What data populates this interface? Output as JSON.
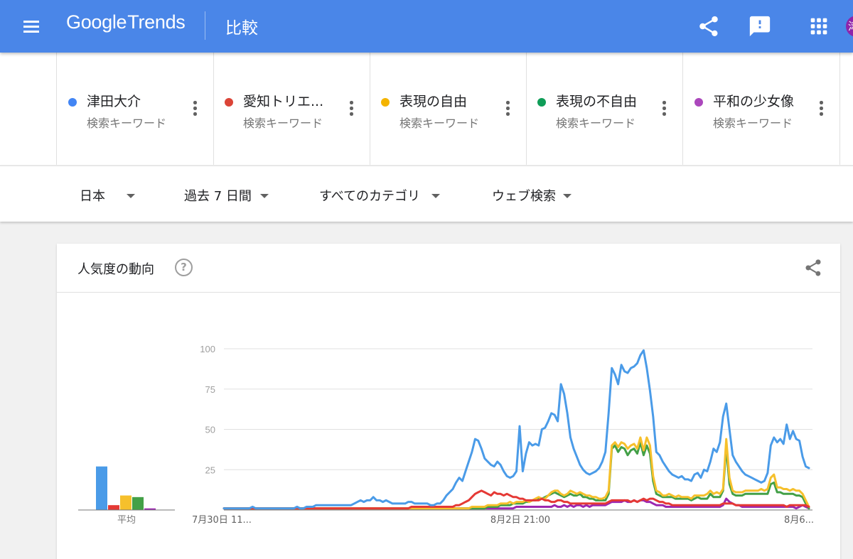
{
  "header": {
    "logo_brand": "Google",
    "logo_product": "Trends",
    "page_title": "比較",
    "avatar_initial": "津",
    "icons": [
      "menu-icon",
      "share-icon",
      "feedback-icon",
      "apps-icon"
    ]
  },
  "terms": [
    {
      "name": "津田大介",
      "type": "検索キーワード",
      "color": "#4285f4"
    },
    {
      "name": "愛知トリエ...",
      "type": "検索キーワード",
      "color": "#db4437"
    },
    {
      "name": "表現の自由",
      "type": "検索キーワード",
      "color": "#f4b400"
    },
    {
      "name": "表現の不自由",
      "type": "検索キーワード",
      "color": "#0f9d58"
    },
    {
      "name": "平和の少女像",
      "type": "検索キーワード",
      "color": "#ab47bc"
    }
  ],
  "filters": {
    "region": "日本",
    "period": "過去 7 日間",
    "category": "すべてのカテゴリ",
    "search_type": "ウェブ検索"
  },
  "card": {
    "title": "人気度の動向",
    "help_glyph": "?"
  },
  "chart_data": {
    "type": "line",
    "ylim": [
      0,
      100
    ],
    "y_ticks": [
      "100",
      "75",
      "50",
      "25"
    ],
    "x_tick_labels": [
      "7月30日 11...",
      "8月2日 21:00",
      "8月6..."
    ],
    "average_label": "平均",
    "averages": [
      27,
      3,
      9,
      8,
      1
    ],
    "series": [
      {
        "name": "津田大介",
        "color": "#4a9be8",
        "values": [
          1,
          1,
          1,
          1,
          1,
          1,
          1,
          1,
          1,
          2,
          1,
          1,
          1,
          1,
          1,
          1,
          1,
          1,
          1,
          1,
          1,
          1,
          1,
          2,
          1,
          1,
          2,
          2,
          2,
          3,
          3,
          3,
          3,
          3,
          3,
          3,
          3,
          3,
          3,
          3,
          3,
          4,
          5,
          6,
          5,
          6,
          6,
          8,
          6,
          6,
          5,
          6,
          5,
          4,
          4,
          4,
          4,
          4,
          5,
          5,
          4,
          4,
          4,
          4,
          4,
          3,
          3,
          4,
          4,
          6,
          9,
          11,
          13,
          17,
          20,
          18,
          24,
          30,
          36,
          44,
          43,
          38,
          32,
          30,
          28,
          27,
          30,
          28,
          24,
          21,
          20,
          21,
          24,
          52,
          24,
          35,
          42,
          40,
          41,
          40,
          50,
          51,
          55,
          60,
          59,
          55,
          78,
          72,
          60,
          45,
          38,
          33,
          28,
          25,
          23,
          22,
          23,
          24,
          26,
          30,
          36,
          60,
          88,
          84,
          78,
          90,
          86,
          85,
          88,
          89,
          91,
          96,
          99,
          88,
          74,
          58,
          36,
          34,
          30,
          27,
          24,
          22,
          21,
          20,
          21,
          19,
          19,
          18,
          22,
          23,
          20,
          25,
          24,
          30,
          38,
          36,
          42,
          58,
          66,
          50,
          34,
          30,
          27,
          24,
          22,
          21,
          20,
          19,
          18,
          17,
          18,
          23,
          40,
          45,
          42,
          44,
          41,
          53,
          44,
          49,
          44,
          43,
          33,
          27,
          26
        ]
      },
      {
        "name": "愛知トリエ...",
        "color": "#e53935",
        "values": [
          1,
          1,
          1,
          1,
          1,
          1,
          1,
          1,
          1,
          1,
          1,
          1,
          1,
          1,
          1,
          1,
          1,
          1,
          1,
          1,
          1,
          1,
          1,
          1,
          1,
          1,
          1,
          1,
          1,
          1,
          1,
          1,
          1,
          1,
          1,
          1,
          1,
          1,
          1,
          1,
          1,
          1,
          1,
          1,
          1,
          1,
          1,
          1,
          1,
          1,
          1,
          1,
          1,
          1,
          1,
          1,
          1,
          1,
          1,
          2,
          2,
          2,
          2,
          2,
          2,
          2,
          2,
          2,
          2,
          2,
          2,
          2,
          2,
          3,
          3,
          4,
          5,
          6,
          8,
          10,
          11,
          12,
          11,
          10,
          9,
          11,
          10,
          10,
          9,
          10,
          9,
          8,
          8,
          7,
          7,
          6,
          6,
          6,
          6,
          6,
          7,
          6,
          6,
          5,
          5,
          6,
          6,
          5,
          5,
          4,
          4,
          4,
          4,
          4,
          4,
          4,
          4,
          4,
          4,
          4,
          4,
          5,
          6,
          6,
          6,
          6,
          6,
          6,
          5,
          6,
          5,
          6,
          7,
          6,
          7,
          7,
          6,
          5,
          5,
          4,
          4,
          3,
          3,
          3,
          3,
          3,
          3,
          3,
          3,
          3,
          3,
          3,
          3,
          3,
          3,
          3,
          3,
          4,
          4,
          4,
          4,
          3,
          3,
          3,
          3,
          3,
          3,
          3,
          3,
          3,
          3,
          3,
          3,
          3,
          3,
          3,
          3,
          2,
          3,
          3,
          3,
          3,
          3,
          3,
          2
        ]
      },
      {
        "name": "表現の自由",
        "color": "#f6c02c",
        "values": [
          1,
          1,
          1,
          1,
          1,
          1,
          1,
          1,
          1,
          1,
          1,
          1,
          1,
          1,
          1,
          1,
          1,
          1,
          1,
          1,
          1,
          1,
          1,
          1,
          1,
          1,
          1,
          1,
          1,
          1,
          1,
          1,
          1,
          1,
          1,
          1,
          1,
          1,
          1,
          1,
          1,
          1,
          1,
          1,
          1,
          1,
          1,
          1,
          1,
          1,
          1,
          1,
          1,
          1,
          1,
          1,
          1,
          1,
          1,
          1,
          1,
          1,
          1,
          1,
          1,
          1,
          1,
          1,
          1,
          1,
          1,
          1,
          1,
          1,
          1,
          1,
          1,
          1,
          2,
          2,
          2,
          2,
          2,
          3,
          3,
          3,
          3,
          4,
          4,
          4,
          5,
          4,
          5,
          5,
          5,
          6,
          5,
          6,
          7,
          8,
          7,
          7,
          9,
          11,
          12,
          12,
          10,
          9,
          10,
          12,
          11,
          10,
          11,
          10,
          9,
          9,
          8,
          8,
          7,
          7,
          8,
          12,
          40,
          42,
          39,
          42,
          41,
          38,
          40,
          41,
          38,
          45,
          37,
          45,
          40,
          21,
          12,
          11,
          9,
          9,
          10,
          9,
          8,
          9,
          8,
          8,
          8,
          7,
          9,
          9,
          9,
          9,
          10,
          12,
          10,
          11,
          10,
          13,
          44,
          20,
          12,
          11,
          11,
          11,
          12,
          12,
          12,
          12,
          12,
          13,
          12,
          13,
          20,
          22,
          14,
          14,
          13,
          13,
          12,
          13,
          12,
          12,
          10,
          6,
          2
        ]
      },
      {
        "name": "表現の不自由",
        "color": "#43a047",
        "values": [
          1,
          1,
          1,
          1,
          1,
          1,
          1,
          1,
          1,
          1,
          1,
          1,
          1,
          1,
          1,
          1,
          1,
          1,
          1,
          1,
          1,
          1,
          1,
          1,
          1,
          1,
          1,
          1,
          1,
          1,
          1,
          1,
          1,
          1,
          1,
          1,
          1,
          1,
          1,
          1,
          1,
          1,
          1,
          1,
          1,
          1,
          1,
          1,
          1,
          1,
          1,
          1,
          1,
          1,
          1,
          1,
          1,
          1,
          1,
          1,
          1,
          1,
          1,
          1,
          1,
          1,
          1,
          1,
          1,
          1,
          1,
          1,
          1,
          1,
          1,
          1,
          1,
          1,
          1,
          1,
          1,
          1,
          1,
          2,
          2,
          2,
          2,
          3,
          3,
          3,
          3,
          4,
          4,
          4,
          4,
          5,
          5,
          6,
          6,
          7,
          7,
          8,
          9,
          10,
          11,
          10,
          9,
          8,
          9,
          10,
          9,
          9,
          10,
          8,
          8,
          7,
          7,
          6,
          6,
          6,
          6,
          10,
          38,
          40,
          36,
          39,
          38,
          34,
          37,
          38,
          35,
          42,
          34,
          40,
          35,
          18,
          10,
          9,
          8,
          8,
          8,
          8,
          7,
          7,
          7,
          7,
          7,
          6,
          7,
          8,
          7,
          7,
          7,
          10,
          8,
          8,
          8,
          12,
          39,
          16,
          10,
          9,
          9,
          9,
          10,
          10,
          10,
          10,
          10,
          10,
          10,
          10,
          16,
          17,
          11,
          11,
          10,
          10,
          10,
          10,
          9,
          9,
          8,
          4,
          1
        ]
      },
      {
        "name": "平和の少女像",
        "color": "#9c27b0",
        "values": [
          1,
          1,
          1,
          1,
          1,
          1,
          1,
          1,
          1,
          1,
          1,
          1,
          1,
          1,
          1,
          1,
          1,
          1,
          1,
          1,
          1,
          1,
          1,
          1,
          1,
          1,
          1,
          1,
          1,
          1,
          1,
          1,
          1,
          1,
          1,
          1,
          1,
          1,
          1,
          1,
          1,
          1,
          1,
          1,
          1,
          1,
          1,
          1,
          1,
          1,
          1,
          1,
          1,
          1,
          1,
          1,
          1,
          1,
          1,
          1,
          1,
          1,
          1,
          1,
          1,
          1,
          1,
          1,
          1,
          1,
          1,
          1,
          1,
          1,
          1,
          1,
          1,
          1,
          1,
          1,
          1,
          1,
          1,
          1,
          1,
          1,
          1,
          1,
          1,
          1,
          1,
          1,
          2,
          2,
          2,
          2,
          2,
          2,
          2,
          2,
          2,
          2,
          2,
          2,
          3,
          2,
          2,
          3,
          2,
          3,
          2,
          3,
          3,
          2,
          3,
          2,
          3,
          3,
          3,
          3,
          3,
          4,
          5,
          5,
          5,
          5,
          6,
          5,
          5,
          6,
          5,
          6,
          6,
          5,
          5,
          4,
          3,
          3,
          3,
          2,
          2,
          2,
          2,
          2,
          2,
          2,
          2,
          2,
          2,
          2,
          2,
          2,
          2,
          2,
          2,
          2,
          2,
          3,
          7,
          5,
          4,
          3,
          3,
          2,
          2,
          2,
          2,
          2,
          2,
          2,
          2,
          2,
          2,
          2,
          2,
          2,
          2,
          2,
          2,
          2,
          1,
          2,
          3,
          2,
          1
        ]
      }
    ]
  }
}
